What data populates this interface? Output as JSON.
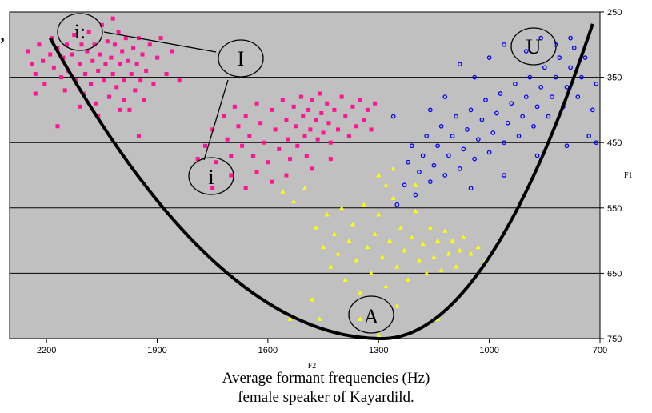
{
  "chart_data": {
    "type": "scatter",
    "title": "",
    "xlabel": "F2",
    "ylabel": "F1",
    "x_reversed": true,
    "y_reversed": true,
    "xlim": [
      2300,
      700
    ],
    "ylim": [
      750,
      250
    ],
    "x_ticks": [
      2200,
      1900,
      1600,
      1300,
      1000,
      700
    ],
    "y_ticks": [
      250,
      350,
      450,
      550,
      650,
      750
    ],
    "grid": "horizontal",
    "plot_background": "#c0c0c0",
    "series": [
      {
        "vowel": "i:",
        "marker": "square",
        "color": "#ff1493",
        "points": [
          [
            2250,
            310
          ],
          [
            2240,
            330
          ],
          [
            2230,
            345
          ],
          [
            2220,
            300
          ],
          [
            2210,
            325
          ],
          [
            2205,
            360
          ],
          [
            2190,
            315
          ],
          [
            2185,
            290
          ],
          [
            2180,
            335
          ],
          [
            2170,
            305
          ],
          [
            2160,
            350
          ],
          [
            2155,
            320
          ],
          [
            2150,
            370
          ],
          [
            2145,
            300
          ],
          [
            2140,
            340
          ],
          [
            2130,
            315
          ],
          [
            2125,
            285
          ],
          [
            2120,
            355
          ],
          [
            2110,
            330
          ],
          [
            2105,
            300
          ],
          [
            2100,
            375
          ],
          [
            2095,
            345
          ],
          [
            2090,
            310
          ],
          [
            2085,
            280
          ],
          [
            2080,
            360
          ],
          [
            2075,
            325
          ],
          [
            2070,
            300
          ],
          [
            2065,
            390
          ],
          [
            2060,
            340
          ],
          [
            2055,
            315
          ],
          [
            2050,
            270
          ],
          [
            2045,
            355
          ],
          [
            2040,
            330
          ],
          [
            2035,
            295
          ],
          [
            2030,
            380
          ],
          [
            2025,
            320
          ],
          [
            2020,
            345
          ],
          [
            2015,
            300
          ],
          [
            2010,
            365
          ],
          [
            2005,
            280
          ],
          [
            2000,
            330
          ],
          [
            1995,
            310
          ],
          [
            1990,
            355
          ],
          [
            1985,
            290
          ],
          [
            1980,
            325
          ],
          [
            1975,
            400
          ],
          [
            1970,
            345
          ],
          [
            1965,
            305
          ],
          [
            1960,
            370
          ],
          [
            1955,
            330
          ],
          [
            1950,
            290
          ],
          [
            1945,
            355
          ],
          [
            1940,
            315
          ],
          [
            1935,
            385
          ],
          [
            1930,
            340
          ],
          [
            1920,
            300
          ],
          [
            1910,
            360
          ],
          [
            1900,
            320
          ],
          [
            1890,
            290
          ],
          [
            1875,
            345
          ],
          [
            1860,
            310
          ],
          [
            1840,
            355
          ],
          [
            2020,
            260
          ],
          [
            1990,
            385
          ],
          [
            2060,
            410
          ],
          [
            2110,
            395
          ],
          [
            2170,
            425
          ],
          [
            2230,
            375
          ],
          [
            1950,
            440
          ],
          [
            2000,
            400
          ]
        ]
      },
      {
        "vowel": "i",
        "marker": "square",
        "color": "#ff1493",
        "points": [
          [
            1790,
            475
          ],
          [
            1770,
            455
          ],
          [
            1750,
            430
          ],
          [
            1740,
            480
          ],
          [
            1720,
            410
          ],
          [
            1710,
            445
          ],
          [
            1700,
            470
          ],
          [
            1690,
            395
          ],
          [
            1680,
            425
          ],
          [
            1670,
            455
          ],
          [
            1660,
            410
          ],
          [
            1650,
            440
          ],
          [
            1640,
            470
          ],
          [
            1630,
            390
          ],
          [
            1620,
            420
          ],
          [
            1610,
            450
          ],
          [
            1600,
            480
          ],
          [
            1590,
            400
          ],
          [
            1580,
            430
          ],
          [
            1570,
            460
          ],
          [
            1560,
            385
          ],
          [
            1550,
            415
          ],
          [
            1545,
            445
          ],
          [
            1540,
            475
          ],
          [
            1530,
            395
          ],
          [
            1525,
            425
          ],
          [
            1520,
            455
          ],
          [
            1510,
            380
          ],
          [
            1505,
            410
          ],
          [
            1500,
            440
          ],
          [
            1495,
            470
          ],
          [
            1490,
            400
          ],
          [
            1485,
            430
          ],
          [
            1480,
            385
          ],
          [
            1470,
            415
          ],
          [
            1465,
            445
          ],
          [
            1460,
            375
          ],
          [
            1455,
            405
          ],
          [
            1450,
            435
          ],
          [
            1440,
            390
          ],
          [
            1435,
            420
          ],
          [
            1430,
            450
          ],
          [
            1420,
            400
          ],
          [
            1410,
            430
          ],
          [
            1400,
            380
          ],
          [
            1390,
            410
          ],
          [
            1380,
            440
          ],
          [
            1370,
            395
          ],
          [
            1360,
            425
          ],
          [
            1350,
            385
          ],
          [
            1340,
            415
          ],
          [
            1330,
            400
          ],
          [
            1320,
            430
          ],
          [
            1310,
            390
          ],
          [
            1590,
            510
          ],
          [
            1630,
            495
          ],
          [
            1700,
            500
          ],
          [
            1480,
            490
          ],
          [
            1430,
            475
          ],
          [
            1750,
            520
          ],
          [
            1660,
            520
          ],
          [
            1550,
            500
          ]
        ]
      },
      {
        "vowel": "U",
        "marker": "circle",
        "color": "#0000ff",
        "points": [
          [
            1250,
            545
          ],
          [
            1230,
            515
          ],
          [
            1220,
            480
          ],
          [
            1210,
            455
          ],
          [
            1200,
            530
          ],
          [
            1190,
            495
          ],
          [
            1180,
            470
          ],
          [
            1170,
            440
          ],
          [
            1160,
            510
          ],
          [
            1150,
            485
          ],
          [
            1140,
            455
          ],
          [
            1130,
            425
          ],
          [
            1120,
            500
          ],
          [
            1110,
            470
          ],
          [
            1100,
            440
          ],
          [
            1090,
            410
          ],
          [
            1080,
            490
          ],
          [
            1070,
            460
          ],
          [
            1060,
            430
          ],
          [
            1050,
            400
          ],
          [
            1040,
            475
          ],
          [
            1030,
            445
          ],
          [
            1020,
            415
          ],
          [
            1010,
            385
          ],
          [
            1000,
            465
          ],
          [
            990,
            435
          ],
          [
            980,
            405
          ],
          [
            970,
            375
          ],
          [
            960,
            450
          ],
          [
            950,
            420
          ],
          [
            940,
            390
          ],
          [
            930,
            360
          ],
          [
            920,
            440
          ],
          [
            910,
            410
          ],
          [
            900,
            380
          ],
          [
            890,
            350
          ],
          [
            880,
            425
          ],
          [
            870,
            395
          ],
          [
            860,
            365
          ],
          [
            850,
            335
          ],
          [
            840,
            410
          ],
          [
            830,
            380
          ],
          [
            820,
            350
          ],
          [
            810,
            320
          ],
          [
            800,
            395
          ],
          [
            790,
            365
          ],
          [
            780,
            335
          ],
          [
            770,
            305
          ],
          [
            760,
            380
          ],
          [
            750,
            350
          ],
          [
            740,
            320
          ],
          [
            730,
            440
          ],
          [
            720,
            400
          ],
          [
            710,
            360
          ],
          [
            1080,
            330
          ],
          [
            1040,
            350
          ],
          [
            1000,
            320
          ],
          [
            960,
            300
          ],
          [
            900,
            310
          ],
          [
            860,
            290
          ],
          [
            820,
            300
          ],
          [
            780,
            290
          ],
          [
            1120,
            380
          ],
          [
            1160,
            400
          ],
          [
            1260,
            410
          ],
          [
            1050,
            520
          ],
          [
            960,
            500
          ],
          [
            870,
            470
          ],
          [
            790,
            455
          ],
          [
            710,
            450
          ]
        ]
      },
      {
        "vowel": "A",
        "marker": "triangle",
        "color": "#ffff00",
        "points": [
          [
            1560,
            525
          ],
          [
            1530,
            540
          ],
          [
            1500,
            520
          ],
          [
            1470,
            580
          ],
          [
            1450,
            610
          ],
          [
            1440,
            560
          ],
          [
            1430,
            640
          ],
          [
            1420,
            590
          ],
          [
            1410,
            620
          ],
          [
            1400,
            550
          ],
          [
            1390,
            660
          ],
          [
            1380,
            600
          ],
          [
            1370,
            575
          ],
          [
            1360,
            630
          ],
          [
            1350,
            680
          ],
          [
            1340,
            545
          ],
          [
            1330,
            610
          ],
          [
            1320,
            650
          ],
          [
            1310,
            590
          ],
          [
            1300,
            560
          ],
          [
            1290,
            625
          ],
          [
            1280,
            670
          ],
          [
            1270,
            600
          ],
          [
            1260,
            535
          ],
          [
            1250,
            640
          ],
          [
            1240,
            580
          ],
          [
            1230,
            615
          ],
          [
            1220,
            660
          ],
          [
            1210,
            595
          ],
          [
            1200,
            555
          ],
          [
            1190,
            630
          ],
          [
            1180,
            605
          ],
          [
            1170,
            650
          ],
          [
            1160,
            580
          ],
          [
            1150,
            625
          ],
          [
            1140,
            600
          ],
          [
            1130,
            645
          ],
          [
            1120,
            585
          ],
          [
            1110,
            620
          ],
          [
            1100,
            600
          ],
          [
            1090,
            640
          ],
          [
            1080,
            615
          ],
          [
            1070,
            595
          ],
          [
            1050,
            620
          ],
          [
            1030,
            610
          ],
          [
            1010,
            630
          ],
          [
            1300,
            500
          ],
          [
            1280,
            515
          ],
          [
            1260,
            490
          ],
          [
            1200,
            515
          ],
          [
            1350,
            720
          ],
          [
            1300,
            745
          ],
          [
            1460,
            720
          ],
          [
            1540,
            720
          ],
          [
            1480,
            690
          ],
          [
            1140,
            720
          ],
          [
            1250,
            700
          ]
        ]
      }
    ]
  },
  "labels": {
    "f2": "F2",
    "f1": "F1",
    "vowel_ii": "i:",
    "vowel_I": "I",
    "vowel_i": "i",
    "vowel_U": "U",
    "vowel_A": "A",
    "stray_mark": ","
  },
  "caption": {
    "line1": "Average formant frequencies (Hz)",
    "line2": "female speaker of Kayardild."
  }
}
